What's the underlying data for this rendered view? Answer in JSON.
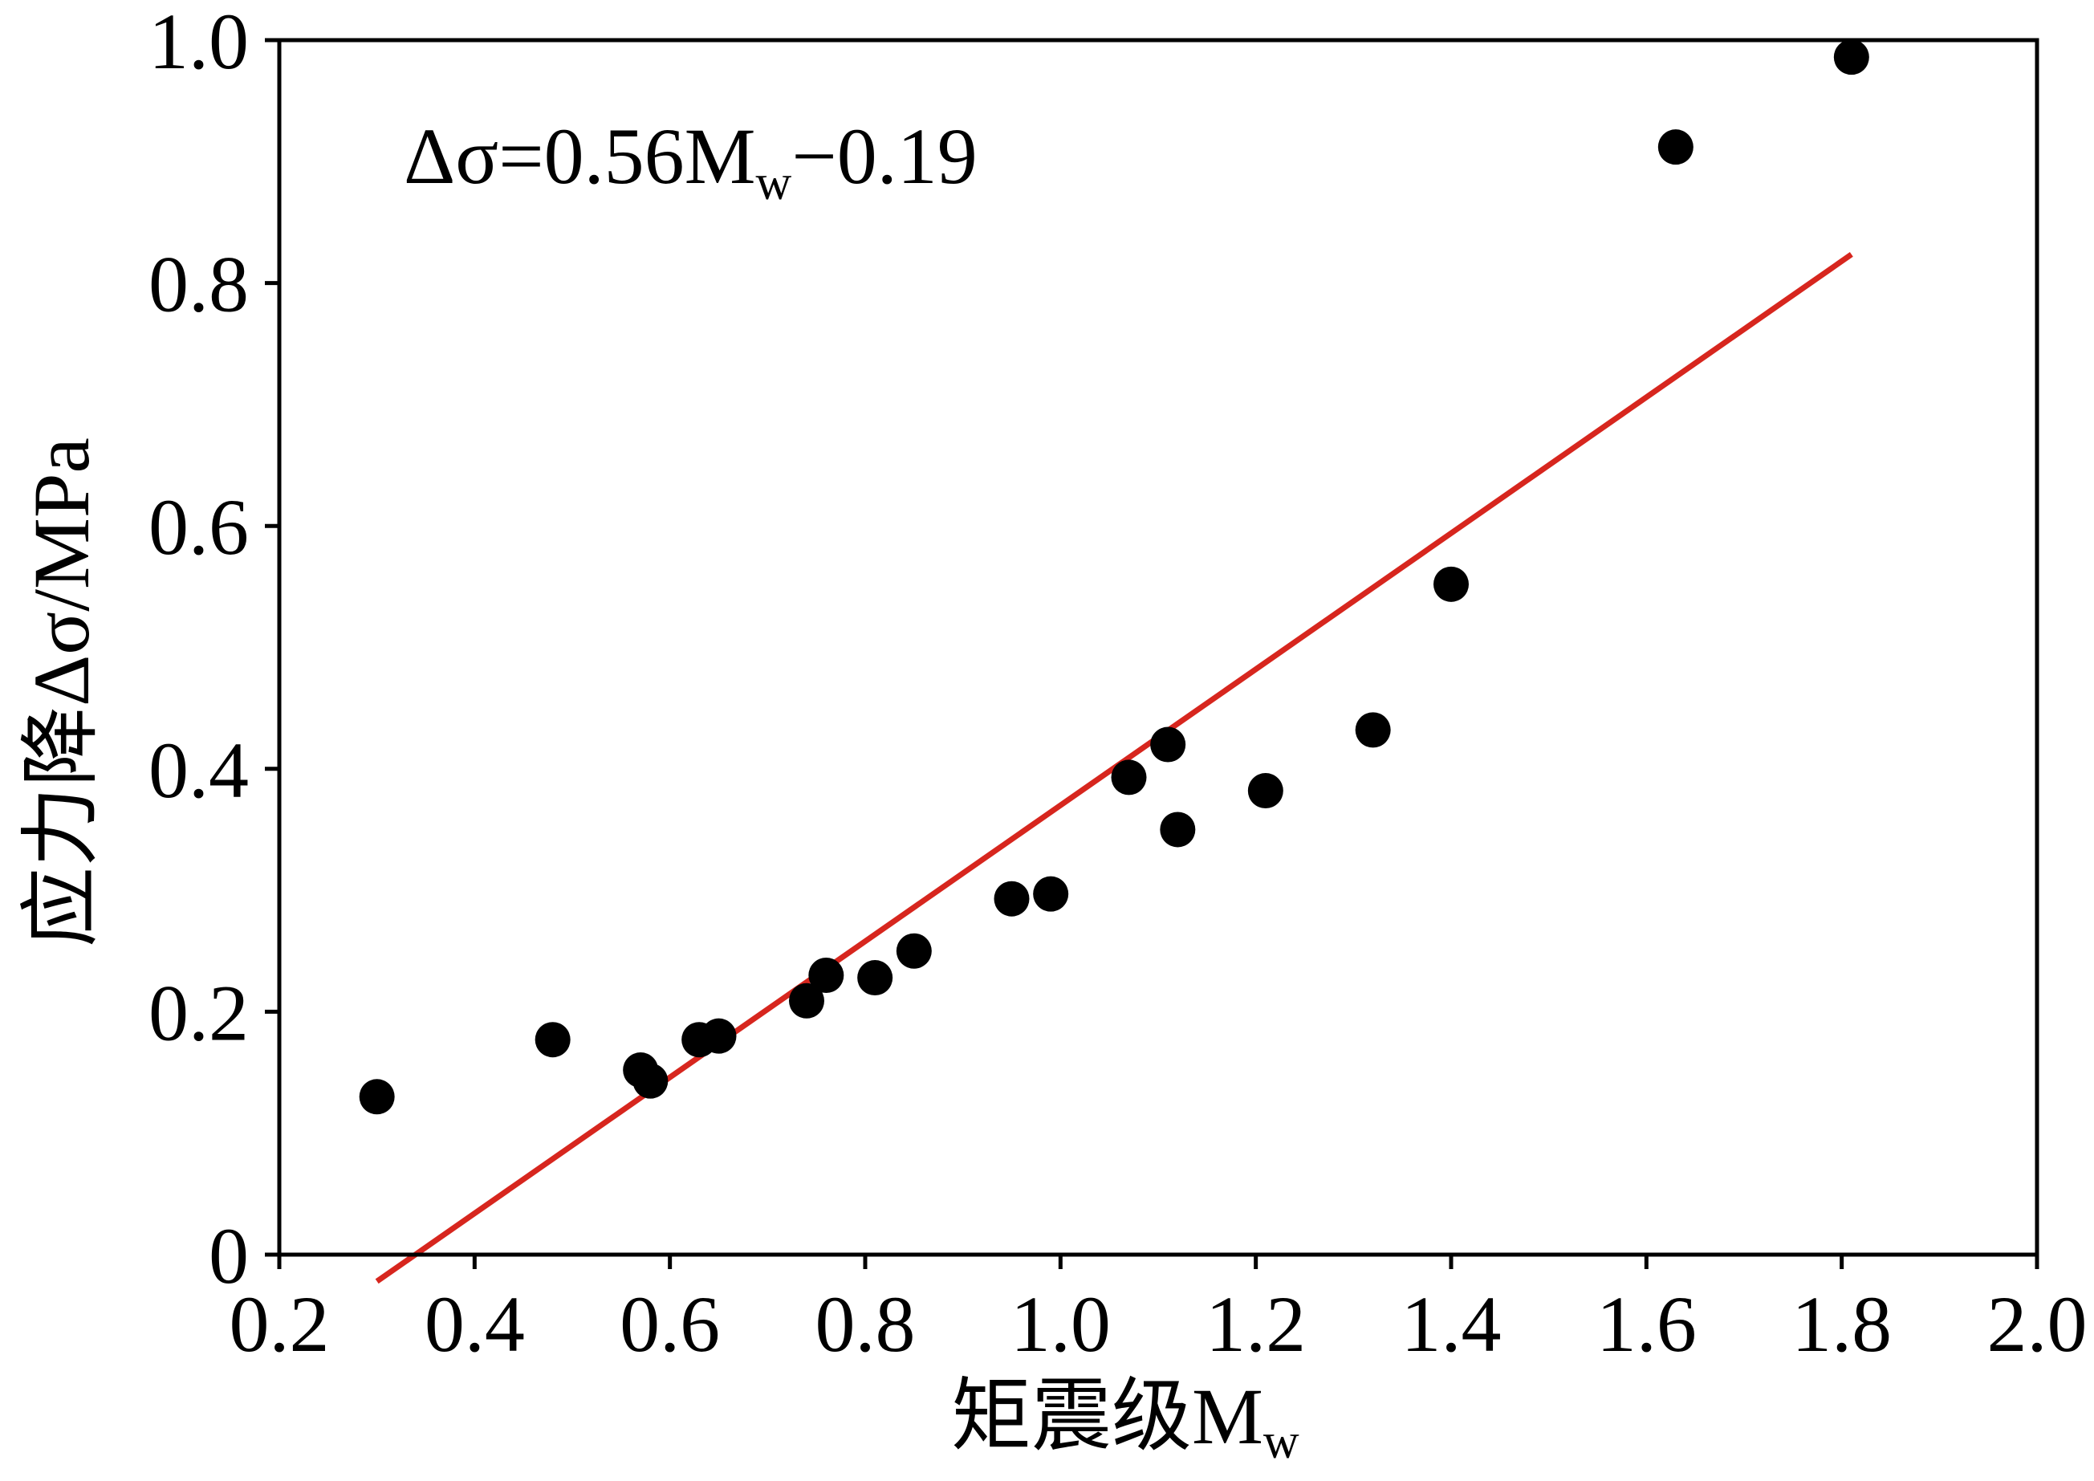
{
  "chart_data": {
    "type": "scatter",
    "xlabel": "矩震级M_w",
    "ylabel": "应力降Δσ/MPa",
    "xlim": [
      0.2,
      2.0
    ],
    "ylim": [
      0,
      1.0
    ],
    "x_ticks": [
      0.2,
      0.4,
      0.6,
      0.8,
      1.0,
      1.2,
      1.4,
      1.6,
      1.8,
      2.0
    ],
    "x_tick_labels": [
      "0.2",
      "0.4",
      "0.6",
      "0.8",
      "1.0",
      "1.2",
      "1.4",
      "1.6",
      "1.8",
      "2.0"
    ],
    "y_ticks": [
      0,
      0.2,
      0.4,
      0.6,
      0.8,
      1.0
    ],
    "y_tick_labels": [
      "0",
      "0.2",
      "0.4",
      "0.6",
      "0.8",
      "1.0"
    ],
    "grid": false,
    "annotation": "Δσ=0.56M_w−0.19",
    "series": [
      {
        "type": "scatter",
        "color": "#000000",
        "points": [
          {
            "x": 0.3,
            "y": 0.13
          },
          {
            "x": 0.48,
            "y": 0.177
          },
          {
            "x": 0.57,
            "y": 0.152
          },
          {
            "x": 0.58,
            "y": 0.143
          },
          {
            "x": 0.63,
            "y": 0.177
          },
          {
            "x": 0.65,
            "y": 0.18
          },
          {
            "x": 0.74,
            "y": 0.209
          },
          {
            "x": 0.76,
            "y": 0.23
          },
          {
            "x": 0.81,
            "y": 0.228
          },
          {
            "x": 0.85,
            "y": 0.25
          },
          {
            "x": 0.95,
            "y": 0.293
          },
          {
            "x": 0.99,
            "y": 0.297
          },
          {
            "x": 1.07,
            "y": 0.393
          },
          {
            "x": 1.11,
            "y": 0.42
          },
          {
            "x": 1.12,
            "y": 0.35
          },
          {
            "x": 1.21,
            "y": 0.382
          },
          {
            "x": 1.32,
            "y": 0.432
          },
          {
            "x": 1.4,
            "y": 0.552
          },
          {
            "x": 1.63,
            "y": 0.912
          },
          {
            "x": 1.81,
            "y": 0.986
          }
        ]
      },
      {
        "type": "line",
        "color": "#d7261e",
        "slope": 0.56,
        "intercept": -0.19,
        "x_range": [
          0.3,
          1.81
        ]
      }
    ]
  }
}
